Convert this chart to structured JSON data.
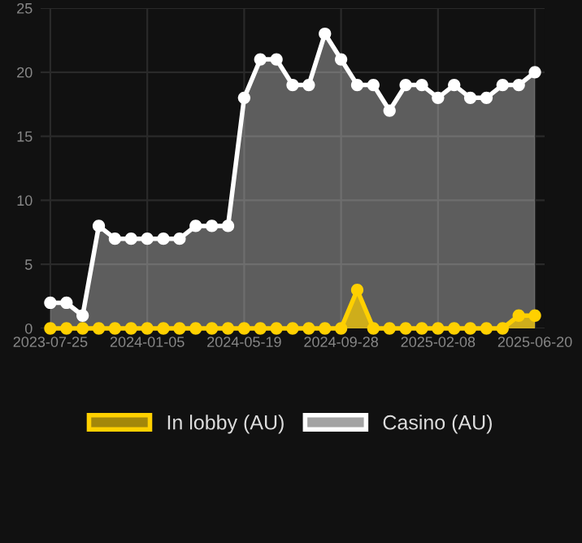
{
  "chart_data": {
    "type": "area",
    "categories": [
      "2023-07-25",
      null,
      null,
      null,
      null,
      null,
      "2024-01-05",
      null,
      null,
      null,
      null,
      null,
      "2024-05-19",
      null,
      null,
      null,
      null,
      null,
      "2024-09-28",
      null,
      null,
      null,
      null,
      null,
      "2025-02-08",
      null,
      null,
      null,
      null,
      null,
      "2025-06-20"
    ],
    "series": [
      {
        "name": "In lobby (AU)",
        "color": "#ffd000",
        "values": [
          0,
          0,
          0,
          0,
          0,
          0,
          0,
          0,
          0,
          0,
          0,
          0,
          0,
          0,
          0,
          0,
          0,
          0,
          0,
          3,
          0,
          0,
          0,
          0,
          0,
          0,
          0,
          0,
          0,
          1,
          1
        ]
      },
      {
        "name": "Casino (AU)",
        "color": "#ffffff",
        "values": [
          2,
          2,
          1,
          8,
          7,
          7,
          7,
          7,
          7,
          8,
          8,
          8,
          18,
          21,
          21,
          19,
          19,
          23,
          21,
          19,
          19,
          17,
          19,
          19,
          18,
          19,
          18,
          18,
          19,
          19,
          20
        ]
      }
    ],
    "ylim": [
      0,
      25
    ],
    "yticks": [
      0,
      5,
      10,
      15,
      20,
      25
    ],
    "grid": true,
    "legend": "bottom",
    "marker": "circle",
    "line_style": "solid"
  }
}
